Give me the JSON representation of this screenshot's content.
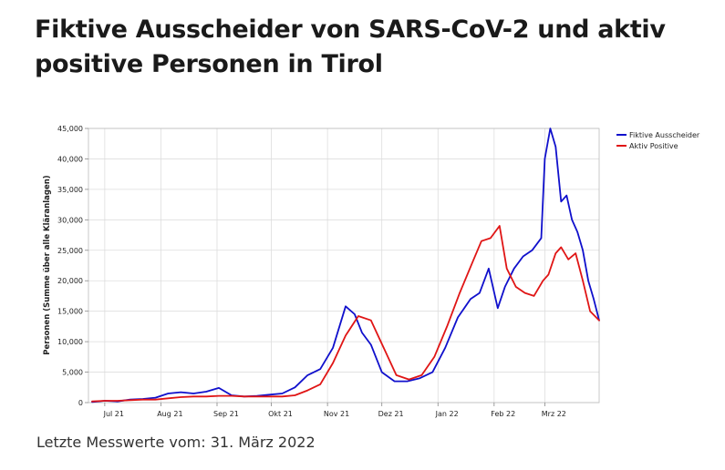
{
  "page": {
    "title": "Fiktive Ausscheider von SARS-CoV-2 und aktiv positive Personen in Tirol",
    "footer": "Letzte Messwerte vom: 31. März 2022"
  },
  "chart_data": {
    "type": "line",
    "ylabel": "Personen (Summe über alle Kläranlagen)",
    "ylim": [
      0,
      45000
    ],
    "yticks": [
      0,
      5000,
      10000,
      15000,
      20000,
      25000,
      30000,
      35000,
      40000,
      45000
    ],
    "ytick_labels": [
      "0",
      "5,000",
      "10,000",
      "15,000",
      "20,000",
      "25,000",
      "30,000",
      "35,000",
      "40,000",
      "45,000"
    ],
    "xticks": [
      "Jul 21",
      "Aug 21",
      "Sep 21",
      "Okt 21",
      "Nov 21",
      "Dez 21",
      "Jan 22",
      "Feb 22",
      "Mrz 22"
    ],
    "grid": true,
    "legend_position": "top-right",
    "series": [
      {
        "name": "Fiktive Ausscheider",
        "color": "#1010cc",
        "x": [
          "2021-06-24",
          "2021-07-01",
          "2021-07-08",
          "2021-07-15",
          "2021-07-22",
          "2021-07-29",
          "2021-08-05",
          "2021-08-12",
          "2021-08-19",
          "2021-08-26",
          "2021-09-02",
          "2021-09-09",
          "2021-09-16",
          "2021-09-23",
          "2021-09-30",
          "2021-10-07",
          "2021-10-14",
          "2021-10-21",
          "2021-10-28",
          "2021-11-04",
          "2021-11-11",
          "2021-11-16",
          "2021-11-20",
          "2021-11-25",
          "2021-12-01",
          "2021-12-08",
          "2021-12-15",
          "2021-12-22",
          "2021-12-29",
          "2022-01-05",
          "2022-01-12",
          "2022-01-19",
          "2022-01-24",
          "2022-01-29",
          "2022-02-03",
          "2022-02-07",
          "2022-02-12",
          "2022-02-17",
          "2022-02-22",
          "2022-02-27",
          "2022-03-01",
          "2022-03-04",
          "2022-03-07",
          "2022-03-10",
          "2022-03-13",
          "2022-03-16",
          "2022-03-19",
          "2022-03-22",
          "2022-03-25",
          "2022-03-28",
          "2022-03-31"
        ],
        "y": [
          100,
          300,
          200,
          500,
          600,
          800,
          1500,
          1700,
          1500,
          1800,
          2400,
          1200,
          1000,
          1100,
          1300,
          1500,
          2500,
          4500,
          5500,
          9000,
          15800,
          14500,
          11500,
          9500,
          5000,
          3500,
          3500,
          4000,
          5000,
          9000,
          14000,
          17000,
          18000,
          22000,
          15500,
          19000,
          22000,
          24000,
          25000,
          27000,
          40000,
          45000,
          42000,
          33000,
          34000,
          30000,
          28000,
          25000,
          20000,
          17000,
          13500
        ]
      },
      {
        "name": "Aktiv Positive",
        "color": "#e01515",
        "x": [
          "2021-06-24",
          "2021-07-01",
          "2021-07-08",
          "2021-07-15",
          "2021-07-22",
          "2021-07-29",
          "2021-08-05",
          "2021-08-12",
          "2021-08-19",
          "2021-08-26",
          "2021-09-02",
          "2021-09-09",
          "2021-09-16",
          "2021-09-23",
          "2021-09-30",
          "2021-10-07",
          "2021-10-14",
          "2021-10-21",
          "2021-10-28",
          "2021-11-04",
          "2021-11-11",
          "2021-11-18",
          "2021-11-25",
          "2021-12-02",
          "2021-12-09",
          "2021-12-16",
          "2021-12-23",
          "2021-12-30",
          "2022-01-06",
          "2022-01-13",
          "2022-01-20",
          "2022-01-25",
          "2022-01-30",
          "2022-02-04",
          "2022-02-08",
          "2022-02-13",
          "2022-02-18",
          "2022-02-23",
          "2022-02-28",
          "2022-03-03",
          "2022-03-07",
          "2022-03-10",
          "2022-03-14",
          "2022-03-18",
          "2022-03-22",
          "2022-03-26",
          "2022-03-31"
        ],
        "y": [
          200,
          300,
          300,
          400,
          500,
          500,
          700,
          900,
          1000,
          1000,
          1100,
          1100,
          1000,
          1000,
          1000,
          1000,
          1200,
          2000,
          3000,
          6500,
          11000,
          14200,
          13500,
          9000,
          4500,
          3800,
          4500,
          7500,
          12500,
          18000,
          23000,
          26500,
          27000,
          29000,
          22000,
          19000,
          18000,
          17500,
          20000,
          21000,
          24500,
          25500,
          23500,
          24500,
          20000,
          15000,
          13500
        ]
      }
    ]
  }
}
